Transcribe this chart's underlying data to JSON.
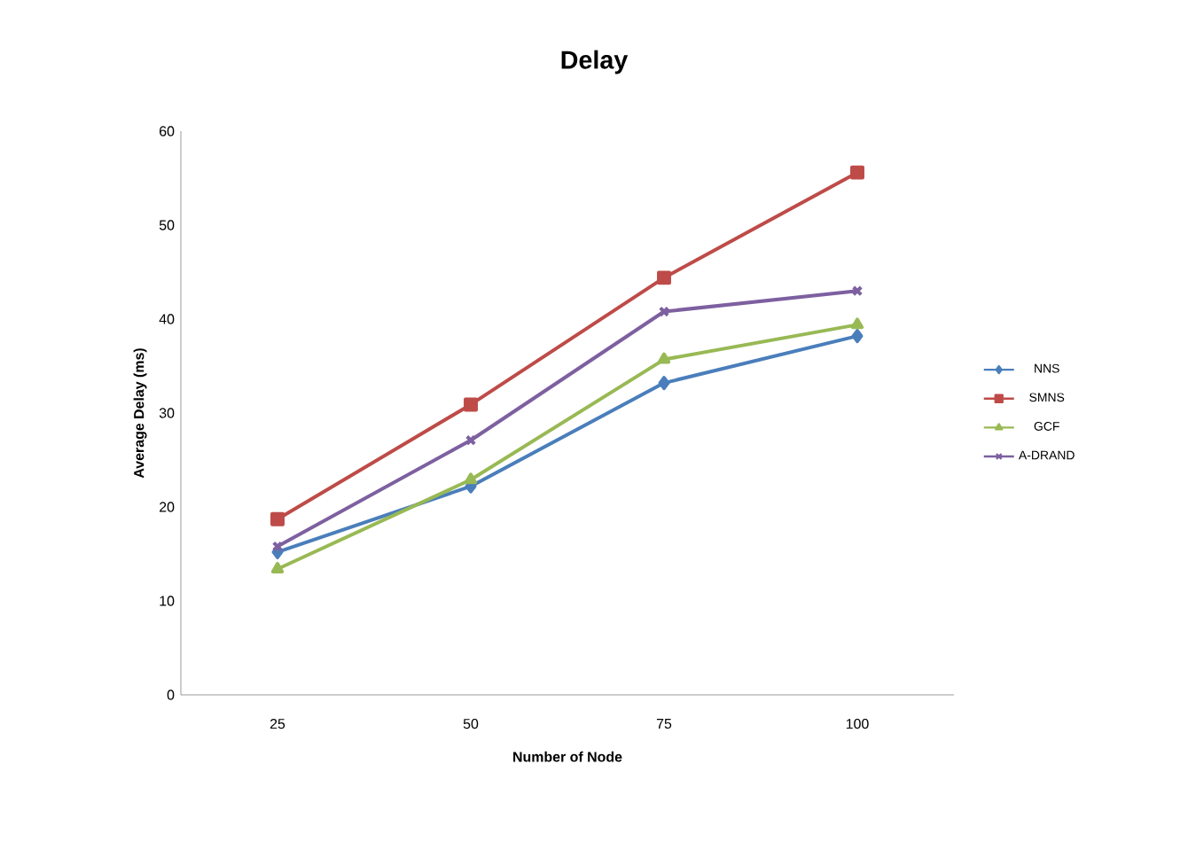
{
  "chart_data": {
    "type": "line",
    "title": "Delay",
    "xlabel": "Number of Node",
    "ylabel": "Average Delay  (ms)",
    "categories": [
      "25",
      "50",
      "75",
      "100"
    ],
    "series": [
      {
        "name": "NNS",
        "color": "#4a7ebb",
        "marker": "diamond",
        "values": [
          15.2,
          22.2,
          33.2,
          38.2
        ]
      },
      {
        "name": "SMNS",
        "color": "#be4b48",
        "marker": "square",
        "values": [
          18.7,
          30.9,
          44.4,
          55.6
        ]
      },
      {
        "name": "GCF",
        "color": "#98b954",
        "marker": "triangle",
        "values": [
          13.4,
          22.9,
          35.7,
          39.4
        ]
      },
      {
        "name": "A-DRAND",
        "color": "#7d60a0",
        "marker": "cross",
        "values": [
          15.8,
          27.1,
          40.8,
          43.0
        ]
      }
    ],
    "ylim": [
      0,
      60
    ],
    "yticks": [
      0,
      10,
      20,
      30,
      40,
      50,
      60
    ],
    "grid": false,
    "legend": "right",
    "line_style": "solid"
  }
}
